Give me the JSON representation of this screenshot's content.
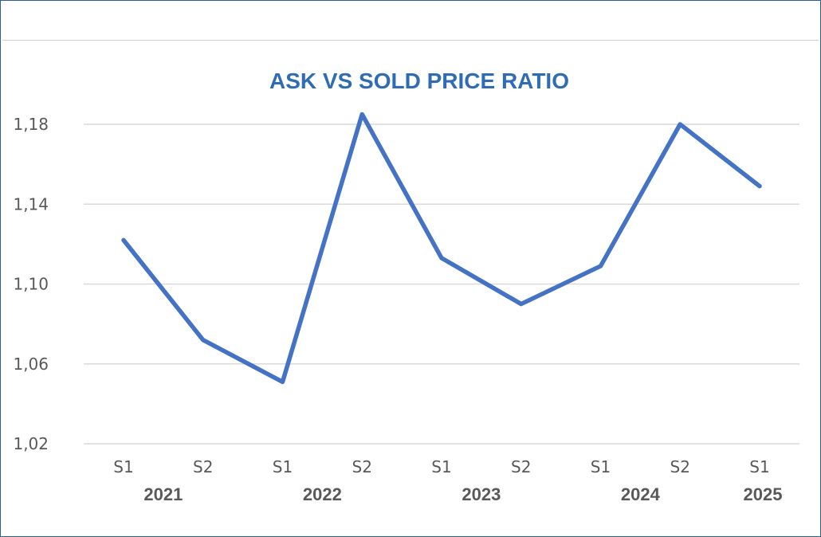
{
  "chart_data": {
    "type": "line",
    "title": "ASK VS SOLD PRICE RATIO",
    "xlabel": "",
    "ylabel": "",
    "categories": [
      "S1",
      "S2",
      "S1",
      "S2",
      "S1",
      "S2",
      "S1",
      "S2",
      "S1"
    ],
    "groups": [
      {
        "label": "2021",
        "span": [
          0,
          1
        ]
      },
      {
        "label": "2022",
        "span": [
          2,
          3
        ]
      },
      {
        "label": "2023",
        "span": [
          4,
          5
        ]
      },
      {
        "label": "2024",
        "span": [
          6,
          7
        ]
      },
      {
        "label": "2025",
        "span": [
          8,
          8
        ]
      }
    ],
    "series": [
      {
        "values": [
          1.122,
          1.072,
          1.051,
          1.185,
          1.113,
          1.09,
          1.109,
          1.18,
          1.149
        ],
        "color": "#4472c4"
      }
    ],
    "ylim": [
      1.02,
      1.18
    ],
    "yticks": [
      {
        "value": 1.02,
        "label": "1,02"
      },
      {
        "value": 1.06,
        "label": "1,06"
      },
      {
        "value": 1.1,
        "label": "1,10"
      },
      {
        "value": 1.14,
        "label": "1,14"
      },
      {
        "value": 1.18,
        "label": "1,18"
      }
    ],
    "grid": true,
    "legend": "none"
  }
}
